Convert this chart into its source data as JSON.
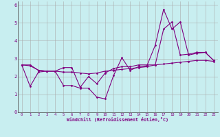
{
  "title": "",
  "xlabel": "Windchill (Refroidissement éolien,°C)",
  "ylabel": "",
  "background_color": "#c8eef0",
  "grid_color": "#aaaaaa",
  "line_color": "#800080",
  "xlim": [
    -0.5,
    23.5
  ],
  "ylim": [
    0,
    6.2
  ],
  "xticks": [
    0,
    1,
    2,
    3,
    4,
    5,
    6,
    7,
    8,
    9,
    10,
    11,
    12,
    13,
    14,
    15,
    16,
    17,
    18,
    19,
    20,
    21,
    22,
    23
  ],
  "yticks": [
    0,
    1,
    2,
    3,
    4,
    5,
    6
  ],
  "series": [
    [
      2.65,
      2.6,
      2.35,
      2.3,
      2.3,
      2.25,
      2.25,
      2.2,
      2.15,
      2.2,
      2.3,
      2.35,
      2.4,
      2.45,
      2.5,
      2.55,
      2.65,
      2.7,
      2.75,
      2.8,
      2.85,
      2.9,
      2.9,
      2.85
    ],
    [
      2.65,
      2.65,
      2.35,
      2.3,
      2.3,
      1.5,
      1.5,
      1.35,
      1.35,
      0.85,
      0.75,
      2.05,
      3.05,
      2.35,
      2.55,
      2.6,
      3.75,
      5.75,
      4.65,
      5.05,
      3.2,
      3.3,
      3.35,
      2.9
    ],
    [
      2.65,
      1.45,
      2.25,
      2.3,
      2.3,
      2.5,
      2.5,
      1.4,
      2.0,
      1.6,
      2.2,
      2.45,
      2.55,
      2.55,
      2.65,
      2.65,
      2.65,
      4.65,
      5.05,
      3.2,
      3.25,
      3.35,
      3.35,
      2.9
    ]
  ]
}
